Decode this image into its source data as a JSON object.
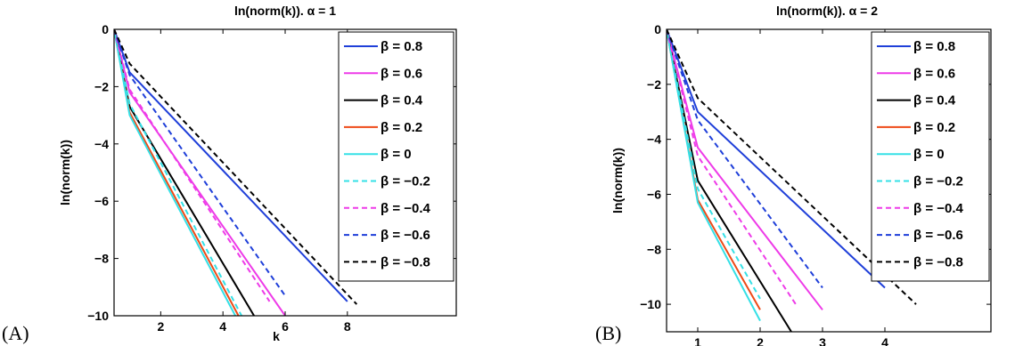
{
  "chart_data": [
    {
      "panel_label": "(A)",
      "type": "line",
      "title": "ln(norm(k)).   α = 1",
      "xlabel": "k",
      "ylabel": "ln(norm(k))",
      "xlim": [
        0.5,
        11.5
      ],
      "ylim": [
        -10,
        0
      ],
      "xticks": [
        2,
        4,
        6,
        8
      ],
      "yticks": [
        0,
        -2,
        -4,
        -6,
        -8,
        -10
      ],
      "legend_position": "top-right",
      "grid": false,
      "series": [
        {
          "name": "β = 0.8",
          "color": "#1f3fd9",
          "dash": false,
          "x": [
            0.5,
            1,
            8
          ],
          "y": [
            0,
            -1.5,
            -9.5
          ]
        },
        {
          "name": "β = 0.6",
          "color": "#ee3be8",
          "dash": false,
          "x": [
            0.5,
            1,
            6
          ],
          "y": [
            0,
            -2.2,
            -10
          ]
        },
        {
          "name": "β = 0.4",
          "color": "#000000",
          "dash": false,
          "x": [
            0.5,
            1,
            5
          ],
          "y": [
            0,
            -2.7,
            -10
          ]
        },
        {
          "name": "β = 0.2",
          "color": "#ee4a17",
          "dash": false,
          "x": [
            0.5,
            1,
            4.5
          ],
          "y": [
            0,
            -2.9,
            -10
          ]
        },
        {
          "name": "β = 0",
          "color": "#35e0e6",
          "dash": false,
          "x": [
            0.5,
            1,
            4.4
          ],
          "y": [
            0,
            -3.0,
            -10
          ]
        },
        {
          "name": "β = −0.2",
          "color": "#35e0e6",
          "dash": true,
          "x": [
            0.5,
            1,
            4.6
          ],
          "y": [
            0,
            -2.6,
            -10
          ]
        },
        {
          "name": "β = −0.4",
          "color": "#ee3be8",
          "dash": true,
          "x": [
            0.5,
            1,
            5.5
          ],
          "y": [
            0,
            -2.1,
            -9.5
          ]
        },
        {
          "name": "β = −0.6",
          "color": "#1f3fd9",
          "dash": true,
          "x": [
            0.5,
            1,
            6
          ],
          "y": [
            0,
            -1.6,
            -9.3
          ]
        },
        {
          "name": "β = −0.8",
          "color": "#000000",
          "dash": true,
          "x": [
            0.5,
            1,
            8.3
          ],
          "y": [
            0,
            -1.2,
            -9.6
          ]
        }
      ]
    },
    {
      "panel_label": "(B)",
      "type": "line",
      "title": "ln(norm(k)).   α = 2",
      "xlabel": "k",
      "ylabel": "ln(norm(k))",
      "xlim": [
        0.5,
        5.7
      ],
      "ylim": [
        -11,
        0
      ],
      "xticks": [
        1,
        2,
        3,
        4
      ],
      "yticks": [
        0,
        -2,
        -4,
        -6,
        -8,
        -10
      ],
      "legend_position": "top-right",
      "grid": false,
      "series": [
        {
          "name": "β = 0.8",
          "color": "#1f3fd9",
          "dash": false,
          "x": [
            0.5,
            1,
            4
          ],
          "y": [
            0,
            -3.0,
            -9.4
          ]
        },
        {
          "name": "β = 0.6",
          "color": "#ee3be8",
          "dash": false,
          "x": [
            0.5,
            1,
            3
          ],
          "y": [
            0,
            -4.3,
            -10.2
          ]
        },
        {
          "name": "β = 0.4",
          "color": "#000000",
          "dash": false,
          "x": [
            0.5,
            1,
            2.5
          ],
          "y": [
            0,
            -5.5,
            -11
          ]
        },
        {
          "name": "β = 0.2",
          "color": "#ee4a17",
          "dash": false,
          "x": [
            0.5,
            1,
            2
          ],
          "y": [
            0,
            -6.2,
            -10.2
          ]
        },
        {
          "name": "β = 0",
          "color": "#35e0e6",
          "dash": false,
          "x": [
            0.5,
            1,
            2
          ],
          "y": [
            0,
            -6.3,
            -10.6
          ]
        },
        {
          "name": "β = −0.2",
          "color": "#35e0e6",
          "dash": true,
          "x": [
            0.5,
            1,
            2
          ],
          "y": [
            0,
            -5.8,
            -9.8
          ]
        },
        {
          "name": "β = −0.4",
          "color": "#ee3be8",
          "dash": true,
          "x": [
            0.5,
            1,
            2.6
          ],
          "y": [
            0,
            -4.6,
            -10.1
          ]
        },
        {
          "name": "β = −0.6",
          "color": "#1f3fd9",
          "dash": true,
          "x": [
            0.5,
            1,
            3
          ],
          "y": [
            0,
            -3.3,
            -9.4
          ]
        },
        {
          "name": "β = −0.8",
          "color": "#000000",
          "dash": true,
          "x": [
            0.5,
            1,
            4.5
          ],
          "y": [
            0,
            -2.5,
            -10
          ]
        }
      ]
    }
  ]
}
